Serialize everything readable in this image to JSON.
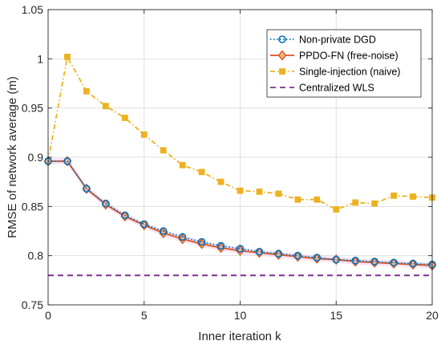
{
  "chart_data": {
    "type": "line",
    "title": "",
    "xlabel": "Inner iteration k",
    "ylabel": "RMSE of network average (m)",
    "xlim": [
      0,
      20
    ],
    "ylim": [
      0.75,
      1.05
    ],
    "xticks": [
      0,
      5,
      10,
      15,
      20
    ],
    "yticks": [
      0.75,
      0.8,
      0.85,
      0.9,
      0.95,
      1,
      1.05
    ],
    "ytick_labels": [
      "0.75",
      "0.8",
      "0.85",
      "0.9",
      "0.95",
      "1",
      "1.05"
    ],
    "grid": true,
    "legend_position": "top-right",
    "x": [
      0,
      1,
      2,
      3,
      4,
      5,
      6,
      7,
      8,
      9,
      10,
      11,
      12,
      13,
      14,
      15,
      16,
      17,
      18,
      19,
      20
    ],
    "series": [
      {
        "name": "Non-private DGD",
        "color": "#0072BD",
        "line_style": "dotted",
        "marker": "circle",
        "values": [
          0.896,
          0.896,
          0.868,
          0.853,
          0.841,
          0.832,
          0.825,
          0.819,
          0.814,
          0.81,
          0.807,
          0.804,
          0.802,
          0.8,
          0.798,
          0.796,
          0.795,
          0.794,
          0.793,
          0.792,
          0.791
        ]
      },
      {
        "name": "PPDO-FN (free-noise)",
        "color": "#D95319",
        "line_style": "solid",
        "marker": "diamond",
        "values": [
          0.896,
          0.896,
          0.868,
          0.852,
          0.84,
          0.831,
          0.823,
          0.817,
          0.812,
          0.808,
          0.805,
          0.803,
          0.801,
          0.799,
          0.797,
          0.796,
          0.794,
          0.793,
          0.792,
          0.791,
          0.79
        ]
      },
      {
        "name": "Single-injection (naive)",
        "color": "#EDB120",
        "line_style": "dashdot",
        "marker": "square",
        "values": [
          0.896,
          1.002,
          0.967,
          0.952,
          0.94,
          0.923,
          0.907,
          0.892,
          0.885,
          0.875,
          0.866,
          0.865,
          0.863,
          0.857,
          0.857,
          0.847,
          0.854,
          0.853,
          0.861,
          0.86,
          0.859
        ]
      },
      {
        "name": "Centralized WLS",
        "color": "#7E2F8E",
        "line_style": "dashed",
        "marker": "none",
        "values": [
          0.78,
          0.78,
          0.78,
          0.78,
          0.78,
          0.78,
          0.78,
          0.78,
          0.78,
          0.78,
          0.78,
          0.78,
          0.78,
          0.78,
          0.78,
          0.78,
          0.78,
          0.78,
          0.78,
          0.78,
          0.78
        ]
      }
    ]
  }
}
